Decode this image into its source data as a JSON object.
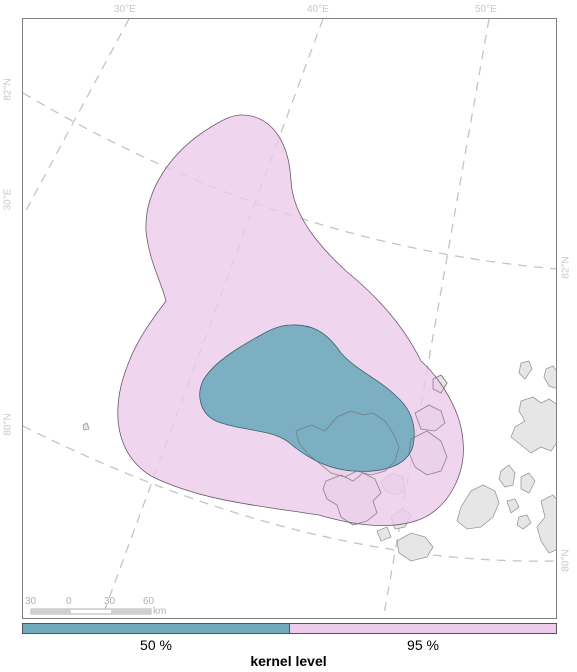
{
  "graticule": {
    "top_lon_labels": [
      "30°E",
      "40°E",
      "50°E"
    ],
    "left_labels": [
      "82°N",
      "30°E",
      "80°N"
    ],
    "right_labels": [
      "82°N",
      "80°N"
    ]
  },
  "scale_bar": {
    "ticks": [
      "30",
      "0",
      "30",
      "60"
    ],
    "unit": "km"
  },
  "legend": {
    "title": "kernel level",
    "items": [
      {
        "label": "50 %",
        "color": "#6fabbd"
      },
      {
        "label": "95 %",
        "color": "#ecccea"
      }
    ]
  },
  "colors": {
    "kernel_50": "#6fabbd",
    "kernel_95": "#ecccea",
    "land": "#e6e6e6",
    "graticule": "#c8c8c8"
  }
}
